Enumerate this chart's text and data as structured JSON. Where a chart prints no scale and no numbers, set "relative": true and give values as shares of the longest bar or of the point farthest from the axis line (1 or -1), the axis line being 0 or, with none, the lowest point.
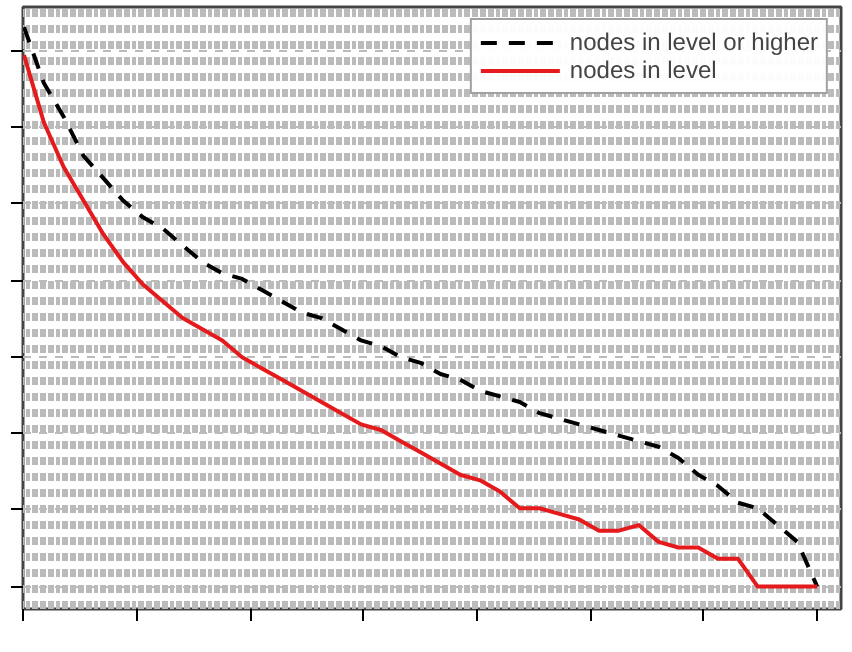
{
  "chart_data": {
    "type": "line",
    "relative": true,
    "categories": [
      null,
      null,
      null,
      null,
      null,
      null,
      null,
      null,
      null,
      null,
      null,
      null,
      null,
      null,
      null,
      null,
      null,
      null,
      null,
      null,
      null,
      null,
      null,
      null,
      null,
      null,
      null,
      null,
      null,
      null,
      null,
      null,
      null,
      null,
      null,
      null,
      null,
      null,
      null,
      null,
      null
    ],
    "series": [
      {
        "name": "nodes in level or higher",
        "color": "#000000",
        "line_style": "dashed",
        "values": [
          1.0,
          0.9,
          0.84,
          0.77,
          0.73,
          0.69,
          0.66,
          0.64,
          0.61,
          0.58,
          0.56,
          0.55,
          0.53,
          0.51,
          0.49,
          0.48,
          0.46,
          0.44,
          0.43,
          0.41,
          0.4,
          0.38,
          0.37,
          0.35,
          0.34,
          0.33,
          0.31,
          0.3,
          0.29,
          0.28,
          0.27,
          0.26,
          0.25,
          0.23,
          0.2,
          0.18,
          0.15,
          0.14,
          0.11,
          0.08,
          0
        ]
      },
      {
        "name": "nodes in level",
        "color": "#e41a1c",
        "line_style": "solid",
        "values": [
          0.95,
          0.83,
          0.75,
          0.69,
          0.63,
          0.58,
          0.54,
          0.51,
          0.48,
          0.46,
          0.44,
          0.41,
          0.39,
          0.37,
          0.35,
          0.33,
          0.31,
          0.29,
          0.28,
          0.26,
          0.24,
          0.22,
          0.2,
          0.19,
          0.17,
          0.14,
          0.14,
          0.13,
          0.12,
          0.1,
          0.1,
          0.11,
          0.08,
          0.07,
          0.07,
          0.05,
          0.05,
          0,
          0,
          0,
          0
        ]
      }
    ],
    "grid": true,
    "legend": "top right",
    "tick_labels": false,
    "marker": "none"
  }
}
